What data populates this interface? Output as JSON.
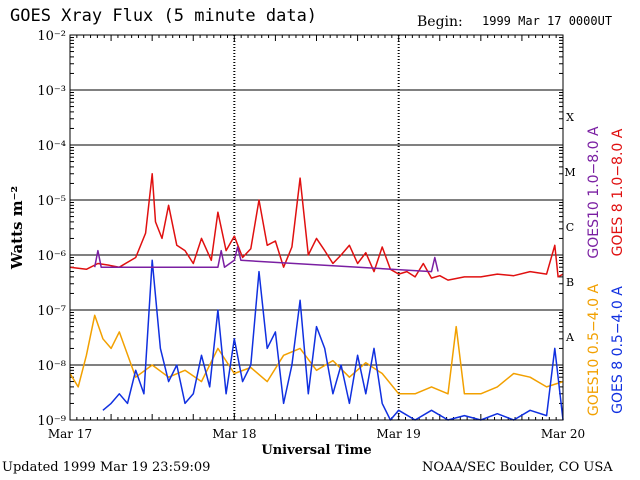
{
  "header": {
    "title": "GOES Xray Flux (5 minute data)",
    "begin_label": "Begin:",
    "begin_value": "1999 Mar 17 0000UT"
  },
  "footer": {
    "updated": "Updated 1999 Mar 19 23:59:09",
    "credit": "NOAA/SEC Boulder, CO USA"
  },
  "chart_data": {
    "type": "line",
    "title": "GOES Xray Flux (5 minute data)",
    "xlabel": "Universal Time",
    "ylabel": "Watts m⁻²",
    "y_scale": "log",
    "ylim": [
      1e-09,
      0.01
    ],
    "x_ticks": [
      "Mar 17",
      "Mar 18",
      "Mar 19",
      "Mar 20"
    ],
    "y_ticks": [
      {
        "value": 1e-09,
        "label": "10⁻⁹"
      },
      {
        "value": 1e-08,
        "label": "10⁻⁸"
      },
      {
        "value": 1e-07,
        "label": "10⁻⁷"
      },
      {
        "value": 1e-06,
        "label": "10⁻⁶"
      },
      {
        "value": 1e-05,
        "label": "10⁻⁵"
      },
      {
        "value": 0.0001,
        "label": "10⁻⁴"
      },
      {
        "value": 0.001,
        "label": "10⁻³"
      },
      {
        "value": 0.01,
        "label": "10⁻²"
      }
    ],
    "flare_classes": [
      {
        "label": "A",
        "value": 3.2e-08
      },
      {
        "label": "B",
        "value": 3.2e-07
      },
      {
        "label": "C",
        "value": 3.2e-06
      },
      {
        "label": "M",
        "value": 3.2e-05
      },
      {
        "label": "X",
        "value": 0.00032
      }
    ],
    "legend": [
      {
        "text": "GOES10 1.0−8.0 A",
        "color": "#7a1fa2"
      },
      {
        "text": "GOES 8 1.0−8.0 A",
        "color": "#e01010"
      },
      {
        "text": "GOES10 0.5−4.0 A",
        "color": "#f2a000"
      },
      {
        "text": "GOES 8 0.5−4.0 A",
        "color": "#1030e0"
      }
    ],
    "series": [
      {
        "name": "GOES 8 1.0−8.0 A",
        "color": "#e01010",
        "x_days": [
          0,
          0.1,
          0.17,
          0.24,
          0.3,
          0.4,
          0.46,
          0.5,
          0.52,
          0.56,
          0.6,
          0.65,
          0.7,
          0.75,
          0.8,
          0.86,
          0.9,
          0.95,
          1.0,
          1.05,
          1.1,
          1.15,
          1.2,
          1.25,
          1.3,
          1.35,
          1.4,
          1.45,
          1.5,
          1.55,
          1.6,
          1.65,
          1.7,
          1.75,
          1.8,
          1.85,
          1.9,
          1.95,
          2.0,
          2.05,
          2.1,
          2.15,
          2.2,
          2.25,
          2.3,
          2.4,
          2.5,
          2.6,
          2.7,
          2.8,
          2.9,
          2.95,
          2.97,
          3.0
        ],
        "y": [
          6e-07,
          5.5e-07,
          7e-07,
          6.5e-07,
          6e-07,
          9e-07,
          2.5e-06,
          3e-05,
          4e-06,
          2e-06,
          8e-06,
          1.5e-06,
          1.2e-06,
          7e-07,
          2e-06,
          8e-07,
          6e-06,
          1.2e-06,
          2.2e-06,
          9e-07,
          1.3e-06,
          1e-05,
          1.5e-06,
          1.8e-06,
          6e-07,
          1.4e-06,
          2.5e-05,
          1e-06,
          2e-06,
          1.2e-06,
          7e-07,
          1e-06,
          1.5e-06,
          7e-07,
          1.1e-06,
          5e-07,
          1.4e-06,
          5.5e-07,
          4.5e-07,
          5e-07,
          4e-07,
          7e-07,
          3.8e-07,
          4.2e-07,
          3.5e-07,
          4e-07,
          4e-07,
          4.5e-07,
          4.2e-07,
          5e-07,
          4.5e-07,
          1.5e-06,
          4e-07,
          4.5e-07
        ]
      },
      {
        "name": "GOES10 1.0−8.0 A",
        "color": "#7a1fa2",
        "x_days": [
          0.15,
          0.17,
          0.19,
          0.9,
          0.92,
          0.94,
          1.0,
          1.02,
          1.04,
          2.2,
          2.22,
          2.24
        ],
        "y": [
          6e-07,
          1.2e-06,
          6e-07,
          6e-07,
          1.2e-06,
          6e-07,
          8e-07,
          1.4e-06,
          8e-07,
          5e-07,
          9e-07,
          5e-07
        ]
      },
      {
        "name": "GOES10 0.5−4.0 A",
        "color": "#f2a000",
        "x_days": [
          0,
          0.05,
          0.1,
          0.15,
          0.2,
          0.25,
          0.3,
          0.4,
          0.5,
          0.6,
          0.7,
          0.8,
          0.9,
          1.0,
          1.1,
          1.2,
          1.3,
          1.4,
          1.5,
          1.6,
          1.7,
          1.8,
          1.9,
          2.0,
          2.1,
          2.2,
          2.3,
          2.35,
          2.4,
          2.5,
          2.6,
          2.7,
          2.8,
          2.9,
          3.0
        ],
        "y": [
          7e-09,
          4e-09,
          1.5e-08,
          8e-08,
          3e-08,
          2e-08,
          4e-08,
          6e-09,
          1e-08,
          6e-09,
          8e-09,
          5e-09,
          2e-08,
          7e-09,
          9e-09,
          5e-09,
          1.5e-08,
          2e-08,
          8e-09,
          1.2e-08,
          6e-09,
          1.1e-08,
          7e-09,
          3e-09,
          3e-09,
          4e-09,
          3e-09,
          5e-08,
          3e-09,
          3e-09,
          4e-09,
          7e-09,
          6e-09,
          4e-09,
          5e-09
        ]
      },
      {
        "name": "GOES 8 0.5−4.0 A",
        "color": "#1030e0",
        "x_days": [
          0.2,
          0.25,
          0.3,
          0.35,
          0.4,
          0.45,
          0.5,
          0.55,
          0.6,
          0.65,
          0.7,
          0.75,
          0.8,
          0.85,
          0.9,
          0.95,
          1.0,
          1.05,
          1.1,
          1.15,
          1.2,
          1.25,
          1.3,
          1.35,
          1.4,
          1.45,
          1.5,
          1.55,
          1.6,
          1.65,
          1.7,
          1.75,
          1.8,
          1.85,
          1.9,
          1.95,
          2.0,
          2.1,
          2.2,
          2.3,
          2.4,
          2.5,
          2.6,
          2.7,
          2.8,
          2.9,
          2.95,
          3.0
        ],
        "y": [
          1.5e-09,
          2e-09,
          3e-09,
          2e-09,
          8e-09,
          3e-09,
          8e-07,
          2e-08,
          5e-09,
          1e-08,
          2e-09,
          3e-09,
          1.5e-08,
          4e-09,
          1e-07,
          3e-09,
          3e-08,
          5e-09,
          1e-08,
          5e-07,
          2e-08,
          4e-08,
          2e-09,
          1e-08,
          1.5e-07,
          3e-09,
          5e-08,
          2e-08,
          3e-09,
          1e-08,
          2e-09,
          1.5e-08,
          3e-09,
          2e-08,
          2e-09,
          1e-09,
          1.5e-09,
          1e-09,
          1.5e-09,
          1e-09,
          1.2e-09,
          1e-09,
          1.3e-09,
          1e-09,
          1.5e-09,
          1.2e-09,
          2e-08,
          1e-09
        ]
      }
    ]
  }
}
